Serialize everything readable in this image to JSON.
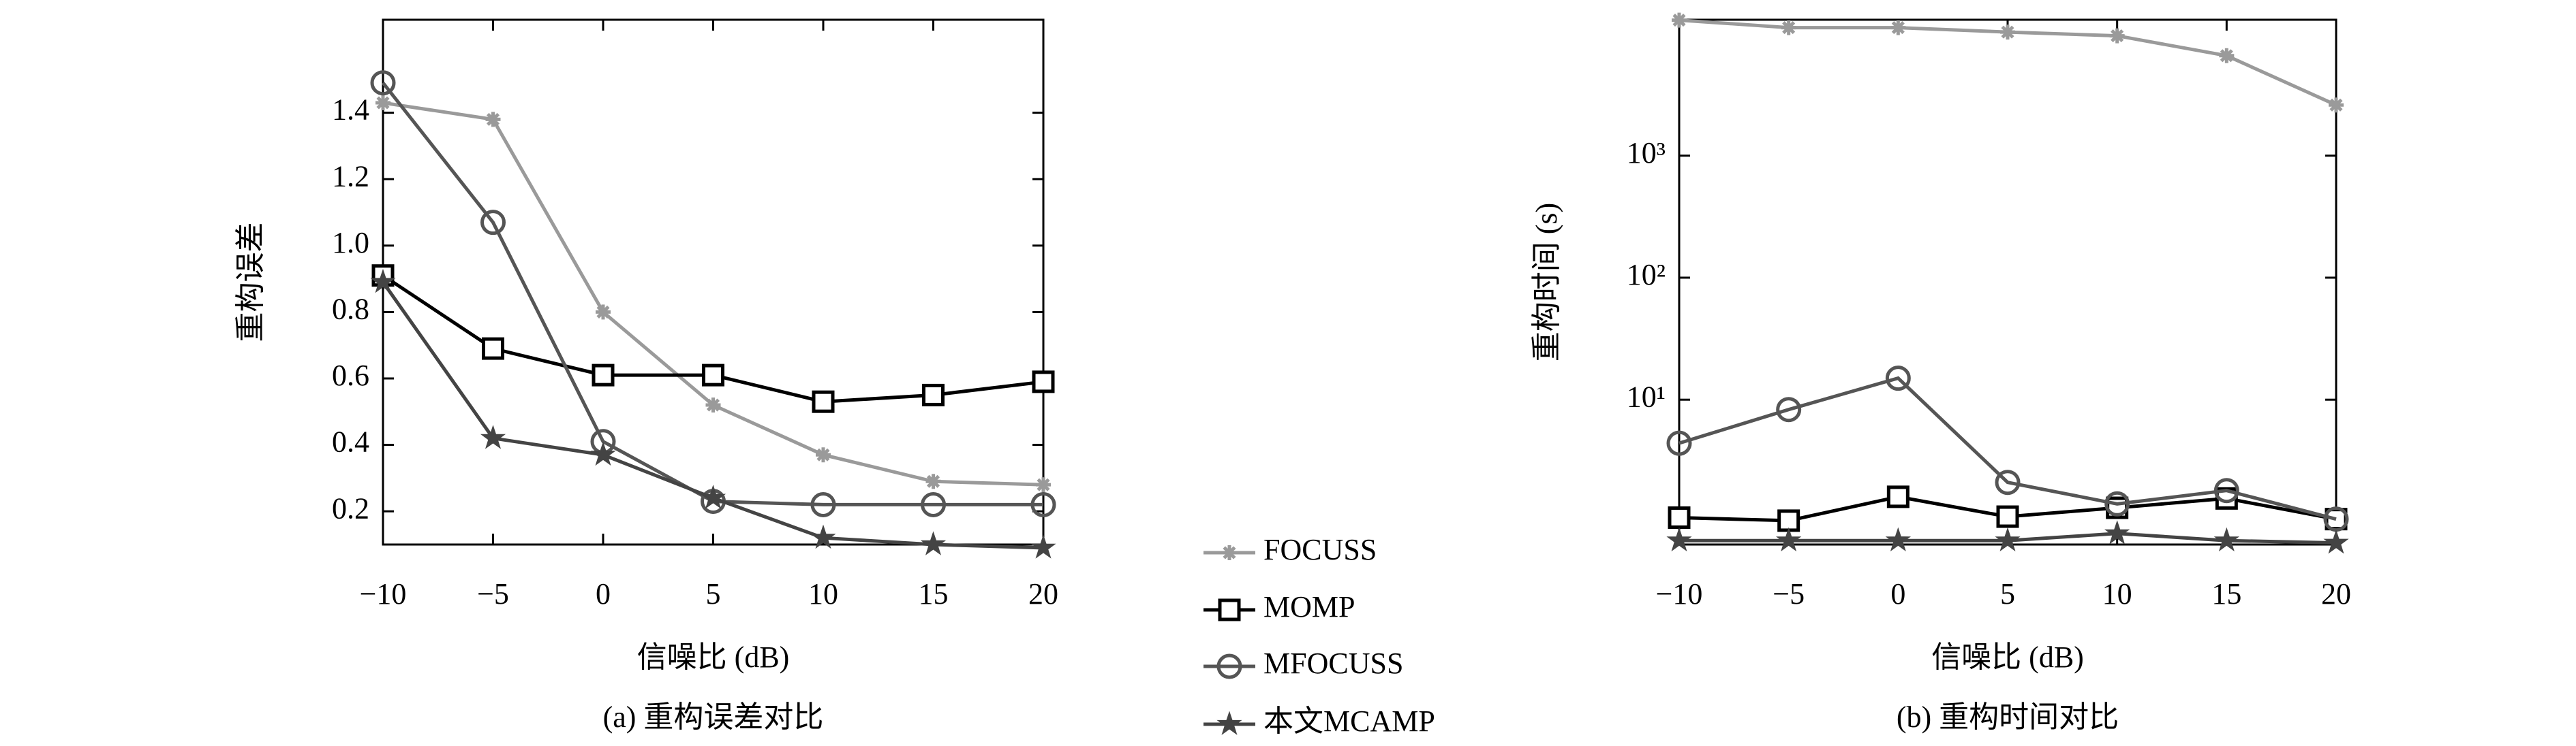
{
  "chart_data": [
    {
      "type": "line",
      "title": "(a) 重构误差对比",
      "xlabel": "信噪比 (dB)",
      "ylabel": "重构误差",
      "x": [
        -10,
        -5,
        0,
        5,
        10,
        15,
        20
      ],
      "xlim": [
        -10,
        20
      ],
      "xticks": [
        {
          "value": -10,
          "label": "−10"
        },
        {
          "value": -5,
          "label": "−5"
        },
        0,
        5,
        10,
        15,
        20
      ],
      "ylim": [
        0.1,
        1.68
      ],
      "yscale": "linear",
      "yticks": [
        0.2,
        0.4,
        0.6,
        0.8,
        {
          "value": 1.0,
          "label": "1.0"
        },
        1.2,
        1.4
      ],
      "series": [
        {
          "name": "FOCUSS",
          "color": "#9a9a9a",
          "marker": "asterisk",
          "values": [
            1.43,
            1.38,
            0.8,
            0.52,
            0.37,
            0.29,
            0.28
          ]
        },
        {
          "name": "MOMP",
          "color": "#000000",
          "marker": "square",
          "values": [
            0.91,
            0.69,
            0.61,
            0.61,
            0.53,
            0.55,
            0.59
          ]
        },
        {
          "name": "MFOCUSS",
          "color": "#555555",
          "marker": "circle",
          "values": [
            1.49,
            1.07,
            0.41,
            0.23,
            0.22,
            0.22,
            0.22
          ]
        },
        {
          "name": "本文MCAMP",
          "color": "#444444",
          "marker": "star",
          "values": [
            0.89,
            0.42,
            0.37,
            0.24,
            0.12,
            0.1,
            0.09
          ]
        }
      ]
    },
    {
      "type": "line",
      "title": "(b) 重构时间对比",
      "xlabel": "信噪比 (dB)",
      "ylabel": "重构时间 (s)",
      "x": [
        -10,
        -5,
        0,
        5,
        10,
        15,
        20
      ],
      "xlim": [
        -10,
        20
      ],
      "xticks": [
        {
          "value": -10,
          "label": "−10"
        },
        {
          "value": -5,
          "label": "−5"
        },
        0,
        5,
        10,
        15,
        20
      ],
      "ylim": [
        0.65,
        13000
      ],
      "yscale": "log",
      "yticks": [
        {
          "value": 10,
          "label": "10¹"
        },
        {
          "value": 100,
          "label": "10²"
        },
        {
          "value": 1000,
          "label": "10³"
        }
      ],
      "series": [
        {
          "name": "FOCUSS",
          "color": "#9a9a9a",
          "marker": "asterisk",
          "values": [
            12900,
            11200,
            11200,
            10300,
            9600,
            6600,
            2600
          ]
        },
        {
          "name": "MOMP",
          "color": "#000000",
          "marker": "square",
          "values": [
            1.08,
            1.02,
            1.6,
            1.1,
            1.3,
            1.55,
            1.05
          ]
        },
        {
          "name": "MFOCUSS",
          "color": "#555555",
          "marker": "circle",
          "values": [
            4.4,
            8.3,
            15,
            2.1,
            1.4,
            1.8,
            1.05
          ]
        },
        {
          "name": "本文MCAMP",
          "color": "#444444",
          "marker": "star",
          "values": [
            0.7,
            0.7,
            0.7,
            0.7,
            0.8,
            0.7,
            0.67
          ]
        }
      ]
    }
  ]
}
